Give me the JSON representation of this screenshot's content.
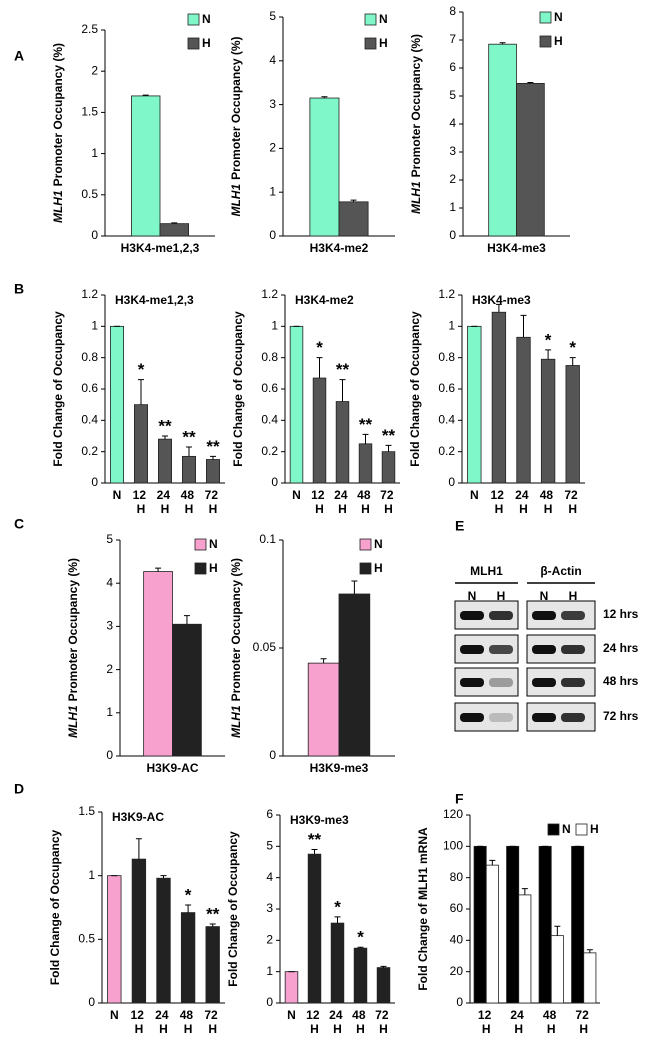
{
  "panels": [
    "A",
    "B",
    "C",
    "D",
    "E",
    "F"
  ],
  "blot": {
    "columns": [
      "MLH1",
      "β-Actin"
    ],
    "lanes": [
      "N",
      "H"
    ],
    "rows": [
      "12 hrs",
      "24 hrs",
      "48 hrs",
      "72 hrs"
    ]
  },
  "chart_data": [
    {
      "type": "bar",
      "ylabel": {
        "gene": "MLH1",
        "text": "Promoter Occupancy (%)"
      },
      "categories": [
        "H3K4-me1,2,3"
      ],
      "series": [
        {
          "name": "N",
          "color": "#80f7c9",
          "values": [
            1.7
          ],
          "errors": [
            0.01
          ]
        },
        {
          "name": "H",
          "color": "#555555",
          "values": [
            0.15
          ],
          "errors": [
            0.01
          ]
        }
      ],
      "ylim": [
        0,
        2.5
      ],
      "yticks": [
        0,
        0.5,
        1,
        1.5,
        2,
        2.5
      ],
      "legend": "upper right"
    },
    {
      "type": "bar",
      "ylabel": {
        "gene": "MLH1",
        "text": "Promoter Occupancy (%)"
      },
      "categories": [
        "H3K4-me2"
      ],
      "series": [
        {
          "name": "N",
          "color": "#80f7c9",
          "values": [
            3.15
          ],
          "errors": [
            0.03
          ]
        },
        {
          "name": "H",
          "color": "#555555",
          "values": [
            0.78
          ],
          "errors": [
            0.04
          ]
        }
      ],
      "ylim": [
        0,
        5
      ],
      "yticks": [
        0,
        1,
        2,
        3,
        4,
        5
      ],
      "legend": "upper right"
    },
    {
      "type": "bar",
      "ylabel": {
        "gene": "MLH1",
        "text": "Promoter Occupancy (%)"
      },
      "categories": [
        "H3K4-me3"
      ],
      "series": [
        {
          "name": "N",
          "color": "#80f7c9",
          "values": [
            6.85
          ],
          "errors": [
            0.05
          ]
        },
        {
          "name": "H",
          "color": "#555555",
          "values": [
            5.45
          ],
          "errors": [
            0.03
          ]
        }
      ],
      "ylim": [
        0,
        8
      ],
      "yticks": [
        0,
        1,
        2,
        3,
        4,
        5,
        6,
        7,
        8
      ],
      "legend": "upper right"
    },
    {
      "type": "bar",
      "title": "H3K4-me1,2,3",
      "ylabel": "Fold Change of Occupancy",
      "categories": [
        "N",
        "12 H",
        "24 H",
        "48 H",
        "72 H"
      ],
      "values": [
        1,
        0.5,
        0.28,
        0.17,
        0.15
      ],
      "errors": [
        0,
        0.16,
        0.02,
        0.06,
        0.02
      ],
      "annotations": [
        null,
        "*",
        "**",
        "**",
        "**"
      ],
      "colors": [
        "#80f7c9",
        "#555555",
        "#555555",
        "#555555",
        "#555555"
      ],
      "ylim": [
        0,
        1.2
      ],
      "yticks": [
        0,
        0.2,
        0.4,
        0.6,
        0.8,
        1,
        1.2
      ]
    },
    {
      "type": "bar",
      "title": "H3K4-me2",
      "ylabel": "Fold Change of Occupancy",
      "categories": [
        "N",
        "12 H",
        "24 H",
        "48 H",
        "72 H"
      ],
      "values": [
        1,
        0.67,
        0.52,
        0.25,
        0.2
      ],
      "errors": [
        0,
        0.13,
        0.14,
        0.06,
        0.04
      ],
      "annotations": [
        null,
        "*",
        "**",
        "**",
        "**"
      ],
      "colors": [
        "#80f7c9",
        "#555555",
        "#555555",
        "#555555",
        "#555555"
      ],
      "ylim": [
        0,
        1.2
      ],
      "yticks": [
        0,
        0.2,
        0.4,
        0.6,
        0.8,
        1,
        1.2
      ]
    },
    {
      "type": "bar",
      "title": "H3K4-me3",
      "ylabel": "Fold Change of Occupancy",
      "categories": [
        "N",
        "12 H",
        "24 H",
        "48 H",
        "72 H"
      ],
      "values": [
        1,
        1.09,
        0.93,
        0.79,
        0.75
      ],
      "errors": [
        0,
        0.05,
        0.14,
        0.06,
        0.05
      ],
      "annotations": [
        null,
        null,
        null,
        "*",
        "*"
      ],
      "colors": [
        "#80f7c9",
        "#555555",
        "#555555",
        "#555555",
        "#555555"
      ],
      "ylim": [
        0,
        1.2
      ],
      "yticks": [
        0,
        0.2,
        0.4,
        0.6,
        0.8,
        1,
        1.2
      ]
    },
    {
      "type": "bar",
      "ylabel": {
        "gene": "MLH1",
        "text": "Promoter Occupancy (%)"
      },
      "categories": [
        "H3K9-AC"
      ],
      "series": [
        {
          "name": "N",
          "color": "#f7a1cf",
          "values": [
            4.27
          ],
          "errors": [
            0.08
          ]
        },
        {
          "name": "H",
          "color": "#222222",
          "values": [
            3.05
          ],
          "errors": [
            0.2
          ]
        }
      ],
      "ylim": [
        0,
        5
      ],
      "yticks": [
        0,
        1,
        2,
        3,
        4,
        5
      ],
      "legend": "upper right"
    },
    {
      "type": "bar",
      "ylabel": {
        "gene": "MLH1",
        "text": "Promoter Occupancy (%)"
      },
      "categories": [
        "H3K9-me3"
      ],
      "series": [
        {
          "name": "N",
          "color": "#f7a1cf",
          "values": [
            0.043
          ],
          "errors": [
            0.002
          ]
        },
        {
          "name": "H",
          "color": "#222222",
          "values": [
            0.075
          ],
          "errors": [
            0.006
          ]
        }
      ],
      "ylim": [
        0,
        0.1
      ],
      "yticks": [
        0,
        0.05,
        0.1
      ],
      "legend": "upper right"
    },
    {
      "type": "bar",
      "title": "H3K9-AC",
      "ylabel": "Fold Change of Occupancy",
      "categories": [
        "N",
        "12 H",
        "24 H",
        "48 H",
        "72 H"
      ],
      "values": [
        1,
        1.13,
        0.98,
        0.71,
        0.6
      ],
      "errors": [
        0,
        0.16,
        0.02,
        0.06,
        0.02
      ],
      "annotations": [
        null,
        null,
        null,
        "*",
        "**"
      ],
      "colors": [
        "#f7a1cf",
        "#222222",
        "#222222",
        "#222222",
        "#222222"
      ],
      "ylim": [
        0,
        1.5
      ],
      "yticks": [
        0,
        0.5,
        1,
        1.5
      ]
    },
    {
      "type": "bar",
      "title": "H3K9-me3",
      "ylabel": "Fold Change of Occupancy",
      "categories": [
        "N",
        "12 H",
        "24 H",
        "48 H",
        "72 H"
      ],
      "values": [
        1,
        4.75,
        2.55,
        1.75,
        1.13
      ],
      "errors": [
        0,
        0.15,
        0.2,
        0.03,
        0.04
      ],
      "annotations": [
        null,
        "**",
        "*",
        "*",
        null
      ],
      "colors": [
        "#f7a1cf",
        "#222222",
        "#222222",
        "#222222",
        "#222222"
      ],
      "ylim": [
        0,
        6
      ],
      "yticks": [
        0,
        1,
        2,
        3,
        4,
        5,
        6
      ]
    },
    {
      "type": "bar",
      "ylabel": "Fold Change of MLH1 mRNA",
      "categories": [
        "12 H",
        "24 H",
        "48 H",
        "72 H"
      ],
      "series": [
        {
          "name": "N",
          "color": "#000000",
          "values": [
            100,
            100,
            100,
            100
          ],
          "errors": [
            0,
            0,
            0,
            0
          ]
        },
        {
          "name": "H",
          "color": "#ffffff",
          "values": [
            88,
            69,
            43,
            32
          ],
          "errors": [
            3,
            4,
            6,
            2
          ]
        }
      ],
      "ylim": [
        0,
        120
      ],
      "yticks": [
        0,
        20,
        40,
        60,
        80,
        100,
        120
      ],
      "legend": "top"
    }
  ]
}
